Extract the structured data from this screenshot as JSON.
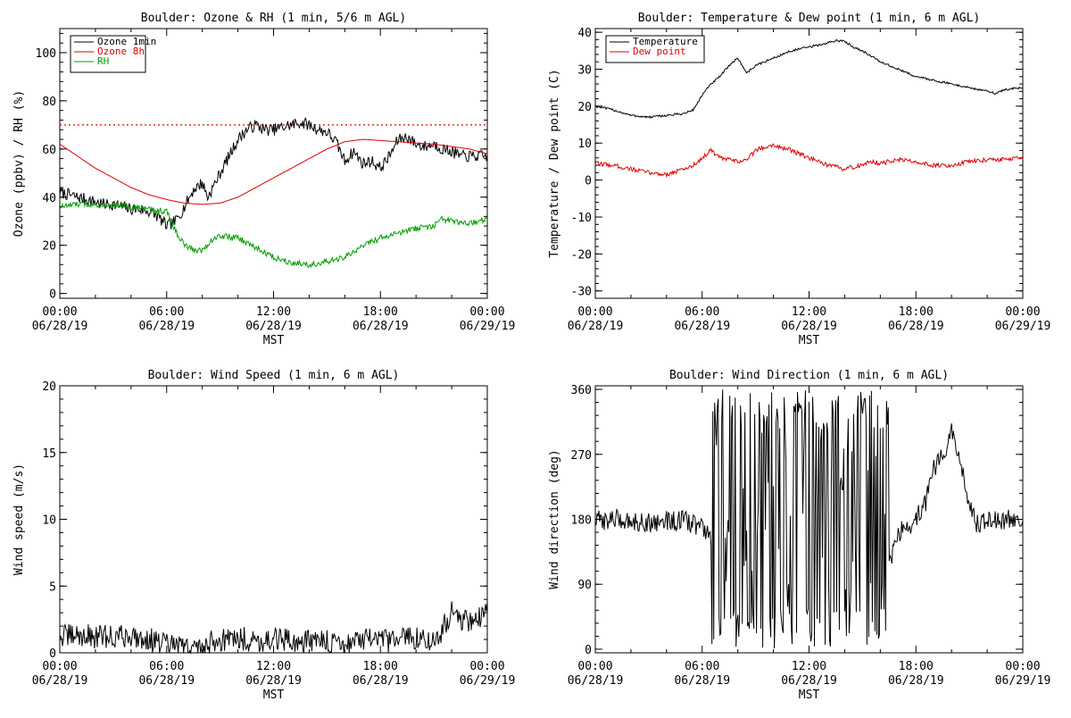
{
  "chart_data": [
    {
      "type": "line",
      "title": "Boulder: Ozone & RH (1 min, 5/6 m AGL)",
      "xlabel": "MST",
      "ylabel": "Ozone (ppbv) / RH (%)",
      "xlim": [
        0,
        24
      ],
      "ylim": [
        -2,
        110
      ],
      "yticks": [
        0,
        20,
        40,
        60,
        80,
        100
      ],
      "xticks": [
        {
          "time": "00:00",
          "date": "06/28/19"
        },
        {
          "time": "06:00",
          "date": "06/28/19"
        },
        {
          "time": "12:00",
          "date": "06/28/19"
        },
        {
          "time": "18:00",
          "date": "06/28/19"
        },
        {
          "time": "00:00",
          "date": "06/29/19"
        }
      ],
      "reference_line": {
        "y": 70,
        "color": "#e00000",
        "style": "dotted"
      },
      "legend": "top-left",
      "series": [
        {
          "name": "Ozone 1min",
          "color": "#000000",
          "noise": 2.5,
          "x": [
            0,
            0.5,
            1,
            1.5,
            2,
            2.5,
            3,
            3.5,
            4,
            4.5,
            5,
            5.5,
            6,
            6.5,
            7,
            7.5,
            8,
            8.3,
            8.6,
            9,
            9.5,
            10,
            10.5,
            11,
            11.5,
            12,
            12.5,
            13,
            13.5,
            14,
            14.5,
            15,
            15.5,
            16,
            16.5,
            17,
            17.5,
            18,
            18.5,
            19,
            19.5,
            20,
            20.5,
            21,
            21.5,
            22,
            22.5,
            23,
            23.5,
            24
          ],
          "y": [
            42,
            41,
            40,
            39,
            38,
            37,
            37,
            36,
            35,
            35,
            34,
            32,
            28,
            30,
            36,
            43,
            46,
            40,
            44,
            50,
            57,
            64,
            68,
            70,
            68,
            68,
            69,
            70,
            71,
            70,
            68,
            67,
            63,
            55,
            59,
            54,
            55,
            52,
            57,
            64,
            65,
            62,
            61,
            62,
            60,
            59,
            57,
            57,
            57,
            57
          ]
        },
        {
          "name": "Ozone 8h",
          "color": "#e00000",
          "noise": 0,
          "x": [
            0,
            1,
            2,
            3,
            4,
            5,
            6,
            7,
            8,
            9,
            10,
            11,
            12,
            13,
            14,
            15,
            16,
            17,
            18,
            19,
            20,
            21,
            22,
            23,
            24
          ],
          "y": [
            62,
            57,
            52,
            48,
            44,
            41,
            39,
            37.5,
            37,
            37.5,
            40,
            44,
            48,
            52,
            56,
            60,
            63,
            64,
            63.5,
            63,
            62.5,
            62,
            61,
            60,
            58
          ]
        },
        {
          "name": "RH",
          "color": "#00a000",
          "noise": 1.3,
          "x": [
            0,
            1,
            2,
            3,
            4,
            5,
            6,
            6.5,
            7,
            7.5,
            8,
            8.5,
            9,
            10,
            11,
            12,
            13,
            14,
            15,
            16,
            16.5,
            17,
            18,
            18.5,
            19,
            20,
            21,
            21.5,
            22,
            22.5,
            23,
            24
          ],
          "y": [
            36,
            37,
            37,
            37,
            36,
            35,
            34,
            26,
            20,
            18,
            18,
            22,
            24,
            23,
            19,
            15,
            13,
            12,
            13,
            15,
            17,
            20,
            23,
            24,
            25,
            27,
            28,
            31,
            30,
            29,
            29,
            31
          ]
        }
      ]
    },
    {
      "type": "line",
      "title": "Boulder: Temperature & Dew point (1 min, 6 m AGL)",
      "xlabel": "MST",
      "ylabel": "Temperature / Dew point (C)",
      "xlim": [
        0,
        24
      ],
      "ylim": [
        -32,
        41
      ],
      "yticks": [
        -30,
        -20,
        -10,
        0,
        10,
        20,
        30,
        40
      ],
      "xticks": [
        {
          "time": "00:00",
          "date": "06/28/19"
        },
        {
          "time": "06:00",
          "date": "06/28/19"
        },
        {
          "time": "12:00",
          "date": "06/28/19"
        },
        {
          "time": "18:00",
          "date": "06/28/19"
        },
        {
          "time": "00:00",
          "date": "06/29/19"
        }
      ],
      "legend": "top-left",
      "series": [
        {
          "name": "Temperature",
          "color": "#000000",
          "noise": 0.3,
          "x": [
            0,
            1,
            2,
            3,
            4,
            5,
            5.5,
            6,
            6.5,
            7,
            7.5,
            8,
            8.5,
            9,
            10,
            11,
            12,
            13,
            13.5,
            14,
            14.5,
            15,
            16,
            17,
            18,
            19,
            20,
            21,
            22,
            22.5,
            23,
            24
          ],
          "y": [
            20,
            19,
            17.5,
            17,
            17.5,
            18,
            19,
            23,
            26,
            28,
            31,
            33,
            29,
            31,
            33,
            35,
            36,
            37,
            37.8,
            37.5,
            36,
            35,
            32,
            30,
            28,
            27,
            26,
            25,
            24,
            23.5,
            24.5,
            25
          ]
        },
        {
          "name": "Dew point",
          "color": "#e00000",
          "noise": 0.6,
          "x": [
            0,
            1,
            2,
            3,
            4,
            5,
            5.5,
            6,
            6.5,
            7,
            8,
            8.5,
            9,
            9.5,
            10,
            11,
            12,
            13,
            14,
            15,
            15.5,
            16,
            17,
            18,
            19,
            20,
            21,
            22,
            23,
            24
          ],
          "y": [
            4.5,
            4,
            3,
            2,
            1.5,
            3,
            4,
            6,
            8,
            6,
            5,
            5.5,
            8,
            9,
            9.5,
            8,
            6,
            4,
            3,
            4,
            5,
            4.5,
            5.5,
            5,
            4,
            4,
            5,
            5.5,
            5.5,
            6
          ]
        }
      ]
    },
    {
      "type": "line",
      "title": "Boulder: Wind Speed (1 min, 6 m AGL)",
      "xlabel": "MST",
      "ylabel": "Wind speed (m/s)",
      "xlim": [
        0,
        24
      ],
      "ylim": [
        0,
        20
      ],
      "yticks": [
        0,
        5,
        10,
        15,
        20
      ],
      "xticks": [
        {
          "time": "00:00",
          "date": "06/28/19"
        },
        {
          "time": "06:00",
          "date": "06/28/19"
        },
        {
          "time": "12:00",
          "date": "06/28/19"
        },
        {
          "time": "18:00",
          "date": "06/28/19"
        },
        {
          "time": "00:00",
          "date": "06/29/19"
        }
      ],
      "series": [
        {
          "color": "#000000",
          "noise": 0.9,
          "floor": 0,
          "x": [
            0,
            1,
            2,
            3,
            4,
            5,
            6,
            7,
            8,
            8.5,
            9,
            10,
            11,
            12,
            13,
            14,
            15,
            16,
            17,
            18,
            19,
            20,
            21,
            21.5,
            22,
            22.5,
            23,
            23.5,
            24
          ],
          "y": [
            1.2,
            1.3,
            1.2,
            1.2,
            1.3,
            1.0,
            0.6,
            0.4,
            0.3,
            0.8,
            1.0,
            1.1,
            0.9,
            1.0,
            0.9,
            0.9,
            0.8,
            0.7,
            1.0,
            0.8,
            1.0,
            1.2,
            0.8,
            1.8,
            3.0,
            2.6,
            2.4,
            2.6,
            3.0
          ]
        }
      ]
    },
    {
      "type": "line",
      "title": "Boulder: Wind Direction (1 min, 6 m AGL)",
      "xlabel": "MST",
      "ylabel": "Wind direction (deg)",
      "xlim": [
        0,
        24
      ],
      "ylim": [
        -5,
        365
      ],
      "yticks": [
        0,
        90,
        180,
        270,
        360
      ],
      "xticks": [
        {
          "time": "00:00",
          "date": "06/28/19"
        },
        {
          "time": "06:00",
          "date": "06/28/19"
        },
        {
          "time": "12:00",
          "date": "06/28/19"
        },
        {
          "time": "18:00",
          "date": "06/28/19"
        },
        {
          "time": "00:00",
          "date": "06/29/19"
        }
      ],
      "series": [
        {
          "color": "#000000",
          "noise": 14,
          "chaos": [
            6.5,
            16.5
          ],
          "floor": 0,
          "ceil": 360,
          "x": [
            0,
            1,
            2,
            3,
            4,
            5,
            6,
            6.5,
            7,
            8,
            9,
            10,
            11,
            12,
            13,
            14,
            15,
            16,
            16.5,
            17,
            18,
            18.5,
            19,
            19.5,
            20,
            20.5,
            21,
            21.5,
            22,
            23,
            24
          ],
          "y": [
            178,
            180,
            178,
            175,
            178,
            178,
            170,
            150,
            120,
            60,
            40,
            30,
            40,
            30,
            40,
            30,
            25,
            40,
            120,
            160,
            180,
            200,
            250,
            270,
            300,
            260,
            200,
            170,
            180,
            180,
            182
          ]
        }
      ]
    }
  ]
}
